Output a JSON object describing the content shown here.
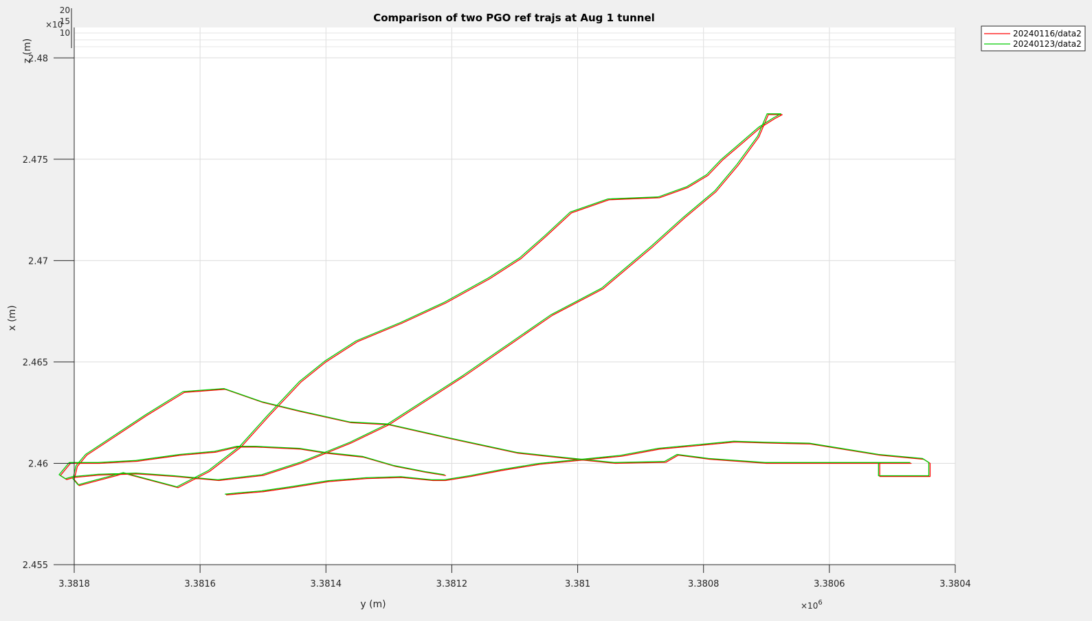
{
  "chart_data": {
    "type": "line",
    "title": "Comparison of two PGO ref trajs at Aug 1 tunnel",
    "xlabel": "y (m)",
    "ylabel": "x (m)",
    "zlabel": "z (m)",
    "x_exponent": "6",
    "y_exponent": "",
    "xlim": [
      3.3804,
      3.3818
    ],
    "x_reversed": true,
    "ylim": [
      2.455,
      2.4815
    ],
    "x_ticks": [
      "3.3818",
      "3.3816",
      "3.3814",
      "3.3812",
      "3.381",
      "3.3808",
      "3.3806",
      "3.3804"
    ],
    "x_tick_values": [
      3.3818,
      3.3816,
      3.3814,
      3.3812,
      3.381,
      3.3808,
      3.3806,
      3.3804
    ],
    "y_ticks": [
      "2.455",
      "2.46",
      "2.465",
      "2.47",
      "2.475",
      "2.48"
    ],
    "y_tick_values": [
      2.455,
      2.46,
      2.465,
      2.47,
      2.475,
      2.48
    ],
    "z_ticks": [
      "20",
      "15",
      "10"
    ],
    "grid": true,
    "legend_position": "top-right",
    "series": [
      {
        "name": "20240116/data2",
        "color": "#ff0000",
        "x": [
          3.381558,
          3.381538,
          3.3815,
          3.381455,
          3.381395,
          3.381335,
          3.38128,
          3.38123,
          3.38121,
          3.38117,
          3.38112,
          3.38106,
          3.380995,
          3.38093,
          3.38087,
          3.3808,
          3.38075,
          3.3807,
          3.38063,
          3.38052,
          3.38045,
          3.38044,
          3.38044,
          3.38052,
          3.38052,
          3.38047,
          3.38052,
          3.38059,
          3.3807,
          3.38079,
          3.38084,
          3.38086,
          3.38094,
          3.38102,
          3.381095,
          3.3812,
          3.3813,
          3.38136,
          3.38144,
          3.3815,
          3.38156,
          3.381625,
          3.381685,
          3.38178,
          3.381795,
          3.3818,
          3.381792,
          3.38172,
          3.381635,
          3.381585,
          3.38156,
          3.381535,
          3.38149,
          3.38144,
          3.3814,
          3.38135,
          3.38128,
          3.38121,
          3.38114,
          3.38109,
          3.38105,
          3.38101,
          3.38095,
          3.38087,
          3.380825,
          3.380793,
          3.38077,
          3.380738,
          3.38071,
          3.380687,
          3.380675,
          3.380697,
          3.380712,
          3.380745,
          3.38078,
          3.38083,
          3.38088,
          3.38096,
          3.38104,
          3.38111,
          3.38118,
          3.38124,
          3.3813,
          3.38136,
          3.38144,
          3.3815,
          3.38157,
          3.38164,
          3.3817,
          3.38176,
          3.381801,
          3.381812,
          3.381822,
          3.381806,
          3.38176,
          3.3817,
          3.38163,
          3.381575,
          3.38154,
          3.38151,
          3.38144,
          3.3814,
          3.38134,
          3.38129,
          3.38124,
          3.38121
        ],
        "y": [
          2.45844,
          2.4585,
          2.4586,
          2.4588,
          2.4591,
          2.45925,
          2.4593,
          2.45915,
          2.45915,
          2.45935,
          2.45965,
          2.45995,
          2.46015,
          2.46035,
          2.4607,
          2.4609,
          2.46105,
          2.461,
          2.46095,
          2.4604,
          2.4602,
          2.46,
          2.45935,
          2.45935,
          2.46,
          2.46,
          2.46,
          2.46,
          2.46,
          2.4602,
          2.4604,
          2.46005,
          2.46,
          2.46025,
          2.4605,
          2.4612,
          2.4619,
          2.462,
          2.46255,
          2.463,
          2.46365,
          2.4635,
          2.46235,
          2.4604,
          2.45985,
          2.4592,
          2.4589,
          2.4595,
          2.4588,
          2.4596,
          2.4602,
          2.4608,
          2.46235,
          2.464,
          2.465,
          2.466,
          2.4669,
          2.4679,
          2.4691,
          2.4701,
          2.4712,
          2.47235,
          2.473,
          2.4731,
          2.4736,
          2.4742,
          2.47495,
          2.4758,
          2.47655,
          2.477,
          2.4772,
          2.4772,
          2.4761,
          2.4747,
          2.4734,
          2.4721,
          2.4707,
          2.4686,
          2.4673,
          2.4658,
          2.4643,
          2.4631,
          2.4619,
          2.461,
          2.46,
          2.4594,
          2.45915,
          2.45935,
          2.45948,
          2.45942,
          2.4593,
          2.4592,
          2.4594,
          2.46,
          2.46,
          2.4601,
          2.4604,
          2.46055,
          2.4608,
          2.4608,
          2.4607,
          2.4605,
          2.4603,
          2.45985,
          2.45955,
          2.4594
        ]
      },
      {
        "name": "20240123/data2",
        "color": "#00cc00",
        "x": [
          3.38156,
          3.38154,
          3.381502,
          3.381457,
          3.381397,
          3.381336,
          3.381281,
          3.381232,
          3.381212,
          3.381172,
          3.381122,
          3.381062,
          3.380996,
          3.380932,
          3.380872,
          3.380802,
          3.380752,
          3.380702,
          3.380632,
          3.380522,
          3.380452,
          3.380442,
          3.380442,
          3.380522,
          3.380522,
          3.380472,
          3.380522,
          3.380592,
          3.380702,
          3.380792,
          3.380842,
          3.380862,
          3.380942,
          3.381022,
          3.381097,
          3.381202,
          3.381302,
          3.381362,
          3.381442,
          3.381502,
          3.381562,
          3.381627,
          3.381687,
          3.381782,
          3.381797,
          3.381802,
          3.381794,
          3.381722,
          3.381637,
          3.381587,
          3.381562,
          3.381537,
          3.381492,
          3.381442,
          3.381402,
          3.381352,
          3.381282,
          3.381212,
          3.381142,
          3.381092,
          3.381052,
          3.381012,
          3.380952,
          3.380872,
          3.380827,
          3.380795,
          3.380772,
          3.38074,
          3.380712,
          3.380689,
          3.380677,
          3.380699,
          3.380714,
          3.380747,
          3.380782,
          3.380832,
          3.380882,
          3.380962,
          3.381042,
          3.381112,
          3.381182,
          3.381242,
          3.381302,
          3.381362,
          3.381442,
          3.381502,
          3.381572,
          3.381642,
          3.381702,
          3.381762,
          3.381803,
          3.381814,
          3.381824,
          3.381808,
          3.381762,
          3.381702,
          3.381632,
          3.381577,
          3.381542,
          3.381512,
          3.381442,
          3.381402,
          3.381342,
          3.381292,
          3.381242,
          3.381212
        ],
        "y": [
          2.45848,
          2.45854,
          2.45864,
          2.45884,
          2.45914,
          2.45929,
          2.45934,
          2.45919,
          2.45919,
          2.45939,
          2.45969,
          2.45999,
          2.46019,
          2.46039,
          2.46074,
          2.46094,
          2.46109,
          2.46104,
          2.46099,
          2.46044,
          2.46024,
          2.46004,
          2.45939,
          2.45939,
          2.46004,
          2.46004,
          2.46004,
          2.46004,
          2.46004,
          2.46024,
          2.46044,
          2.46009,
          2.46004,
          2.46029,
          2.46054,
          2.46124,
          2.46194,
          2.46204,
          2.46259,
          2.46304,
          2.46369,
          2.46354,
          2.46239,
          2.46044,
          2.45989,
          2.45924,
          2.45894,
          2.45954,
          2.45884,
          2.45964,
          2.46024,
          2.46084,
          2.46239,
          2.46404,
          2.46504,
          2.46604,
          2.46694,
          2.46794,
          2.46914,
          2.47014,
          2.47124,
          2.47239,
          2.47304,
          2.47314,
          2.47364,
          2.47424,
          2.47499,
          2.47584,
          2.47659,
          2.47704,
          2.47724,
          2.47724,
          2.47614,
          2.47474,
          2.47344,
          2.47214,
          2.47074,
          2.46864,
          2.46734,
          2.46584,
          2.46434,
          2.46314,
          2.46194,
          2.46104,
          2.46004,
          2.45944,
          2.45919,
          2.45939,
          2.45952,
          2.45946,
          2.45934,
          2.45924,
          2.45944,
          2.46004,
          2.46004,
          2.46014,
          2.46044,
          2.46059,
          2.46084,
          2.46084,
          2.46074,
          2.46054,
          2.46034,
          2.45989,
          2.45959,
          2.45944
        ]
      }
    ]
  }
}
